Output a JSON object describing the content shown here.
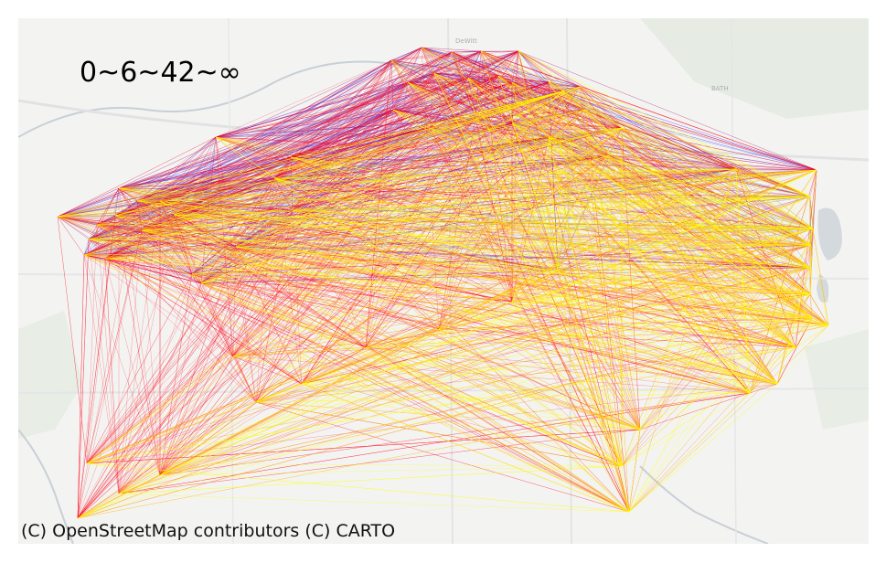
{
  "title": "0~6~42~∞",
  "attribution": "(C) OpenStreetMap contributors (C) CARTO",
  "basemap": {
    "style": "light gray street map",
    "place_labels": [
      "DeWitt",
      "BATH"
    ]
  },
  "legend_colors": {
    "first_bin": "#2222ff",
    "second_bin": "#ff0b1f",
    "third_bin": "#ffff00"
  },
  "edge_bins": [
    "0~6",
    "6~42",
    "42~∞"
  ]
}
